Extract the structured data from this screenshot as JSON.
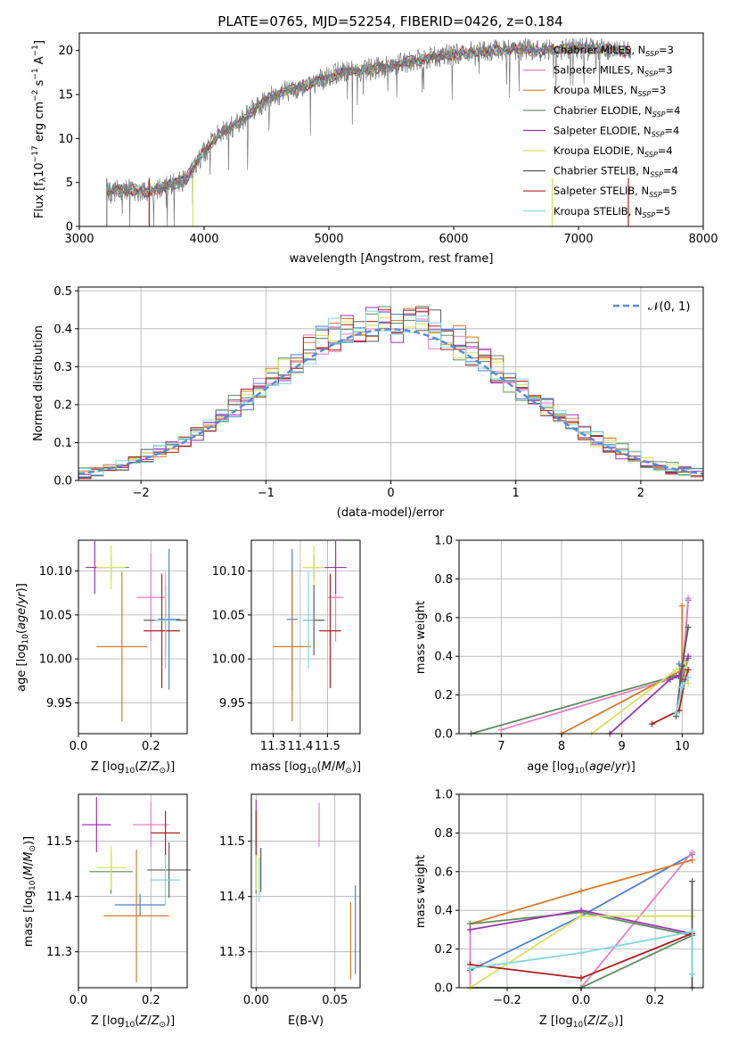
{
  "figure_title": "PLATE=0765, MJD=52254, FIBERID=0426, z=0.184",
  "colors": {
    "Chabrier MILES": "#4e7fd0",
    "Salpeter MILES": "#e87fbf",
    "Kroupa MILES": "#d97a2b",
    "Chabrier ELODIE": "#5e8c64",
    "Salpeter ELODIE": "#9c35b0",
    "Kroupa ELODIE": "#d7e45c",
    "Chabrier STELIB": "#5a5a5a",
    "Salpeter STELIB": "#b01e1e",
    "Kroupa STELIB": "#7fd8dc"
  },
  "legend_spectrum": [
    {
      "name": "Chabrier MILES",
      "label": "Chabrier MILES, N",
      "sub": "SSP",
      "val": "=3"
    },
    {
      "name": "Salpeter MILES",
      "label": "Salpeter MILES, N",
      "sub": "SSP",
      "val": "=3"
    },
    {
      "name": "Kroupa MILES",
      "label": "Kroupa MILES, N",
      "sub": "SSP",
      "val": "=3"
    },
    {
      "name": "Chabrier ELODIE",
      "label": "Chabrier ELODIE, N",
      "sub": "SSP",
      "val": "=4"
    },
    {
      "name": "Salpeter ELODIE",
      "label": "Salpeter ELODIE, N",
      "sub": "SSP",
      "val": "=4"
    },
    {
      "name": "Kroupa ELODIE",
      "label": "Kroupa ELODIE, N",
      "sub": "SSP",
      "val": "=4"
    },
    {
      "name": "Chabrier STELIB",
      "label": "Chabrier STELIB, N",
      "sub": "SSP",
      "val": "=4"
    },
    {
      "name": "Salpeter STELIB",
      "label": "Salpeter STELIB, N",
      "sub": "SSP",
      "val": "=5"
    },
    {
      "name": "Kroupa STELIB",
      "label": "Kroupa STELIB, N",
      "sub": "SSP",
      "val": "=5"
    }
  ],
  "chart_data": [
    {
      "id": "spectrum",
      "type": "line",
      "xlabel": "wavelength [Angstrom, rest frame]",
      "ylabel": "Flux [f_λ 10^-17 erg cm^-2 s^-1 A^-1]",
      "xlim": [
        3000,
        8000
      ],
      "ylim": [
        0,
        22
      ],
      "xticks": [
        "3000",
        "4000",
        "5000",
        "6000",
        "7000",
        "8000"
      ],
      "yticks": [
        "0",
        "5",
        "10",
        "15",
        "20"
      ],
      "observed_range": [
        3220,
        7420
      ],
      "continuum_points": [
        [
          3220,
          4.0
        ],
        [
          3400,
          4.2
        ],
        [
          3550,
          3.9
        ],
        [
          3700,
          4.6
        ],
        [
          3850,
          5.3
        ],
        [
          3950,
          7.5
        ],
        [
          4100,
          10.2
        ],
        [
          4300,
          12.0
        ],
        [
          4500,
          14.5
        ],
        [
          4700,
          15.6
        ],
        [
          4900,
          16.4
        ],
        [
          5100,
          17.6
        ],
        [
          5300,
          17.8
        ],
        [
          5500,
          18.3
        ],
        [
          5700,
          18.9
        ],
        [
          5900,
          19.4
        ],
        [
          6100,
          19.7
        ],
        [
          6300,
          20.0
        ],
        [
          6500,
          20.2
        ],
        [
          6700,
          20.0
        ],
        [
          6900,
          20.2
        ],
        [
          7100,
          20.3
        ],
        [
          7300,
          20.0
        ],
        [
          7420,
          19.8
        ]
      ]
    },
    {
      "id": "residuals",
      "type": "histogram",
      "xlabel": "(data-model)/error",
      "ylabel": "Normed distribution",
      "xlim": [
        -2.5,
        2.5
      ],
      "ylim": [
        0,
        0.51
      ],
      "xticks": [
        "−2",
        "−1",
        "0",
        "1",
        "2"
      ],
      "yticks": [
        "0.0",
        "0.1",
        "0.2",
        "0.3",
        "0.4",
        "0.5"
      ],
      "bin_width": 0.1,
      "curve_label": "𝒩(0, 1)",
      "curve_color": "#5b8bd6"
    },
    {
      "id": "age_vs_Z",
      "type": "errorbar",
      "xlabel": "Z [log10(Z/Z⊙)]",
      "ylabel": "age [log10(age/yr)]",
      "xlim": [
        0.0,
        0.3
      ],
      "ylim": [
        9.915,
        10.135
      ],
      "xticks": [
        "0.0",
        "0.2"
      ],
      "yticks": [
        "9.95",
        "10.00",
        "10.05",
        "10.10"
      ],
      "points": [
        {
          "s": "Chabrier MILES",
          "x": 0.25,
          "xerr": 0.03,
          "y": 10.045,
          "yerr": 0.08
        },
        {
          "s": "Salpeter MILES",
          "x": 0.2,
          "xerr": 0.04,
          "y": 10.07,
          "yerr": 0.05
        },
        {
          "s": "Kroupa MILES",
          "x": 0.12,
          "xerr": 0.07,
          "y": 10.014,
          "yerr": 0.085
        },
        {
          "s": "Chabrier ELODIE",
          "x": 0.09,
          "xerr": 0.05,
          "y": 10.104,
          "yerr": 0.015
        },
        {
          "s": "Salpeter ELODIE",
          "x": 0.045,
          "xerr": 0.025,
          "y": 10.104,
          "yerr": 0.03
        },
        {
          "s": "Kroupa ELODIE",
          "x": 0.09,
          "xerr": 0.04,
          "y": 10.104,
          "yerr": 0.025
        },
        {
          "s": "Chabrier STELIB",
          "x": 0.24,
          "xerr": 0.06,
          "y": 10.044,
          "yerr": 0.04
        },
        {
          "s": "Salpeter STELIB",
          "x": 0.23,
          "xerr": 0.05,
          "y": 10.032,
          "yerr": 0.065
        },
        {
          "s": "Kroupa STELIB",
          "x": 0.24,
          "xerr": 0.03,
          "y": 10.044,
          "yerr": 0.055
        }
      ]
    },
    {
      "id": "age_vs_mass",
      "type": "errorbar",
      "xlabel": "mass [log10(M/M⊙)]",
      "ylabel": "",
      "xlim": [
        11.22,
        11.62
      ],
      "ylim": [
        9.915,
        10.135
      ],
      "xticks": [
        "11.3",
        "11.4",
        "11.5"
      ],
      "yticks": [
        "9.95",
        "10.00",
        "10.05",
        "10.10"
      ],
      "points": [
        {
          "s": "Chabrier MILES",
          "x": 11.37,
          "xerr": 0.02,
          "y": 10.045,
          "yerr": 0.08
        },
        {
          "s": "Salpeter MILES",
          "x": 11.53,
          "xerr": 0.03,
          "y": 10.07,
          "yerr": 0.05
        },
        {
          "s": "Kroupa MILES",
          "x": 11.37,
          "xerr": 0.07,
          "y": 10.014,
          "yerr": 0.085
        },
        {
          "s": "Chabrier ELODIE",
          "x": 11.45,
          "xerr": 0.04,
          "y": 10.104,
          "yerr": 0.015
        },
        {
          "s": "Salpeter ELODIE",
          "x": 11.53,
          "xerr": 0.04,
          "y": 10.104,
          "yerr": 0.03
        },
        {
          "s": "Kroupa ELODIE",
          "x": 11.45,
          "xerr": 0.04,
          "y": 10.104,
          "yerr": 0.025
        },
        {
          "s": "Chabrier STELIB",
          "x": 11.45,
          "xerr": 0.04,
          "y": 10.044,
          "yerr": 0.04
        },
        {
          "s": "Salpeter STELIB",
          "x": 11.51,
          "xerr": 0.04,
          "y": 10.032,
          "yerr": 0.065
        },
        {
          "s": "Kroupa STELIB",
          "x": 11.43,
          "xerr": 0.02,
          "y": 10.044,
          "yerr": 0.055
        }
      ]
    },
    {
      "id": "weight_vs_age",
      "type": "line",
      "xlabel": "age [log10(age/yr)]",
      "ylabel": "mass weight",
      "xlim": [
        6.3,
        10.35
      ],
      "ylim": [
        0,
        1.0
      ],
      "xticks": [
        "7",
        "8",
        "9",
        "10"
      ],
      "yticks": [
        "0.0",
        "0.2",
        "0.4",
        "0.6",
        "0.8",
        "1.0"
      ],
      "series": [
        {
          "s": "Chabrier MILES",
          "pts": [
            [
              9.95,
              0.36
            ],
            [
              10.0,
              0.27
            ],
            [
              10.1,
              0.69
            ]
          ]
        },
        {
          "s": "Salpeter MILES",
          "pts": [
            [
              7.0,
              0.02
            ],
            [
              10.0,
              0.3
            ],
            [
              10.1,
              0.7
            ]
          ]
        },
        {
          "s": "Kroupa MILES",
          "pts": [
            [
              8.0,
              0.0
            ],
            [
              10.0,
              0.33
            ],
            [
              10.0,
              0.66
            ]
          ]
        },
        {
          "s": "Chabrier ELODIE",
          "pts": [
            [
              6.5,
              0.0
            ],
            [
              9.9,
              0.3
            ],
            [
              10.0,
              0.27
            ],
            [
              10.1,
              0.39
            ]
          ]
        },
        {
          "s": "Salpeter ELODIE",
          "pts": [
            [
              8.8,
              0.0
            ],
            [
              9.8,
              0.28
            ],
            [
              9.95,
              0.3
            ],
            [
              10.1,
              0.4
            ]
          ]
        },
        {
          "s": "Kroupa ELODIE",
          "pts": [
            [
              8.5,
              0.0
            ],
            [
              9.9,
              0.33
            ],
            [
              10.05,
              0.37
            ],
            [
              10.1,
              0.26
            ]
          ]
        },
        {
          "s": "Chabrier STELIB",
          "pts": [
            [
              9.9,
              0.09
            ],
            [
              10.0,
              0.35
            ],
            [
              10.1,
              0.55
            ]
          ]
        },
        {
          "s": "Salpeter STELIB",
          "pts": [
            [
              9.5,
              0.05
            ],
            [
              9.95,
              0.12
            ],
            [
              10.05,
              0.28
            ],
            [
              10.1,
              0.33
            ]
          ]
        },
        {
          "s": "Kroupa STELIB",
          "pts": [
            [
              9.9,
              0.11
            ],
            [
              10.0,
              0.24
            ],
            [
              10.1,
              0.29
            ]
          ]
        }
      ]
    },
    {
      "id": "mass_vs_Z",
      "type": "errorbar",
      "xlabel": "Z [log10(Z/Z⊙)]",
      "ylabel": "mass [log10(M/M⊙)]",
      "xlim": [
        0.0,
        0.3
      ],
      "ylim": [
        11.235,
        11.585
      ],
      "xticks": [
        "0.0",
        "0.2"
      ],
      "yticks": [
        "11.3",
        "11.4",
        "11.5"
      ],
      "points": [
        {
          "s": "Chabrier MILES",
          "x": 0.17,
          "xerr": 0.07,
          "y": 11.385,
          "yerr": 0.02
        },
        {
          "s": "Salpeter MILES",
          "x": 0.2,
          "xerr": 0.05,
          "y": 11.53,
          "yerr": 0.04
        },
        {
          "s": "Kroupa MILES",
          "x": 0.16,
          "xerr": 0.09,
          "y": 11.365,
          "yerr": 0.12
        },
        {
          "s": "Chabrier ELODIE",
          "x": 0.09,
          "xerr": 0.06,
          "y": 11.445,
          "yerr": 0.04
        },
        {
          "s": "Salpeter ELODIE",
          "x": 0.05,
          "xerr": 0.04,
          "y": 11.53,
          "yerr": 0.05
        },
        {
          "s": "Kroupa ELODIE",
          "x": 0.09,
          "xerr": 0.04,
          "y": 11.452,
          "yerr": 0.04
        },
        {
          "s": "Chabrier STELIB",
          "x": 0.25,
          "xerr": 0.06,
          "y": 11.448,
          "yerr": 0.05
        },
        {
          "s": "Salpeter STELIB",
          "x": 0.24,
          "xerr": 0.04,
          "y": 11.515,
          "yerr": 0.04
        },
        {
          "s": "Kroupa STELIB",
          "x": 0.24,
          "xerr": 0.04,
          "y": 11.43,
          "yerr": 0.045
        }
      ]
    },
    {
      "id": "mass_vs_ebv",
      "type": "errorbar",
      "xlabel": "E(B-V)",
      "ylabel": "",
      "xlim": [
        -0.003,
        0.066
      ],
      "ylim": [
        11.235,
        11.585
      ],
      "xticks": [
        "0.00",
        "0.05"
      ],
      "yticks": [
        "11.3",
        "11.4",
        "11.5"
      ],
      "points": [
        {
          "s": "Chabrier MILES",
          "x": 0.063,
          "xerr": 0,
          "y": 11.34,
          "yerr": 0.08
        },
        {
          "s": "Salpeter MILES",
          "x": 0.04,
          "xerr": 0,
          "y": 11.53,
          "yerr": 0.04
        },
        {
          "s": "Kroupa MILES",
          "x": 0.06,
          "xerr": 0,
          "y": 11.32,
          "yerr": 0.07
        },
        {
          "s": "Chabrier ELODIE",
          "x": 0.0,
          "xerr": 0,
          "y": 11.445,
          "yerr": 0.04
        },
        {
          "s": "Salpeter ELODIE",
          "x": 0.0,
          "xerr": 0,
          "y": 11.53,
          "yerr": 0.045
        },
        {
          "s": "Kroupa ELODIE",
          "x": 0.0,
          "xerr": 0,
          "y": 11.452,
          "yerr": 0.04
        },
        {
          "s": "Chabrier STELIB",
          "x": 0.003,
          "xerr": 0,
          "y": 11.448,
          "yerr": 0.04
        },
        {
          "s": "Salpeter STELIB",
          "x": 0.0,
          "xerr": 0,
          "y": 11.515,
          "yerr": 0.04
        },
        {
          "s": "Kroupa STELIB",
          "x": 0.002,
          "xerr": 0,
          "y": 11.43,
          "yerr": 0.04
        }
      ]
    },
    {
      "id": "weight_vs_Z",
      "type": "line",
      "xlabel": "Z [log10(Z/Z⊙)]",
      "ylabel": "mass weight",
      "xlim": [
        -0.33,
        0.33
      ],
      "ylim": [
        0,
        1.0
      ],
      "xticks": [
        "−0.2",
        "0.0",
        "0.2"
      ],
      "yticks": [
        "0.0",
        "0.2",
        "0.4",
        "0.6",
        "0.8",
        "1.0"
      ],
      "series": [
        {
          "s": "Chabrier MILES",
          "pts": [
            [
              -0.3,
              0.09
            ],
            [
              0.0,
              0.37
            ],
            [
              0.3,
              0.69
            ]
          ]
        },
        {
          "s": "Salpeter MILES",
          "pts": [
            [
              -0.3,
              0.3
            ],
            [
              -0.3,
              0.0
            ],
            [
              0.0,
              0.0
            ],
            [
              0.3,
              0.7
            ]
          ]
        },
        {
          "s": "Kroupa MILES",
          "pts": [
            [
              -0.3,
              0.33
            ],
            [
              0.0,
              0.5
            ],
            [
              0.3,
              0.66
            ]
          ]
        },
        {
          "s": "Chabrier ELODIE",
          "pts": [
            [
              -0.3,
              0.33
            ],
            [
              0.0,
              0.39
            ],
            [
              0.3,
              0.27
            ],
            [
              0.0,
              0.0
            ],
            [
              -0.3,
              0.0
            ]
          ]
        },
        {
          "s": "Salpeter ELODIE",
          "pts": [
            [
              -0.3,
              0.3
            ],
            [
              0.0,
              0.4
            ],
            [
              0.3,
              0.28
            ]
          ]
        },
        {
          "s": "Kroupa ELODIE",
          "pts": [
            [
              -0.3,
              0.0
            ],
            [
              0.0,
              0.37
            ],
            [
              0.3,
              0.37
            ]
          ]
        },
        {
          "s": "Chabrier STELIB",
          "pts": [
            [
              0.3,
              0.55
            ],
            [
              0.3,
              0.0
            ]
          ]
        },
        {
          "s": "Salpeter STELIB",
          "pts": [
            [
              -0.3,
              0.12
            ],
            [
              0.0,
              0.05
            ],
            [
              0.3,
              0.28
            ]
          ]
        },
        {
          "s": "Kroupa STELIB",
          "pts": [
            [
              -0.3,
              0.1
            ],
            [
              0.0,
              0.18
            ],
            [
              0.3,
              0.29
            ],
            [
              0.3,
              0.07
            ]
          ]
        }
      ]
    }
  ]
}
